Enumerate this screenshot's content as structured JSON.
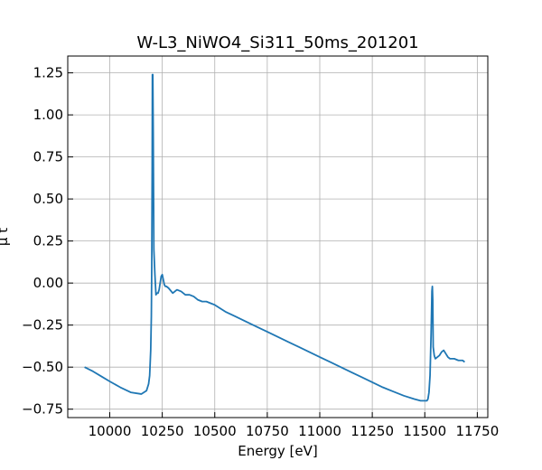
{
  "chart_data": {
    "type": "line",
    "title": "W-L3_NiWO4_Si311_50ms_201201",
    "xlabel": "Energy [eV]",
    "ylabel": "μ t",
    "xlim": [
      9800,
      11800
    ],
    "ylim": [
      -0.8,
      1.35
    ],
    "x_ticks": [
      10000,
      10250,
      10500,
      10750,
      11000,
      11250,
      11500,
      11750
    ],
    "x_tick_labels": [
      "10000",
      "10250",
      "10500",
      "10750",
      "11000",
      "11250",
      "11500",
      "11750"
    ],
    "y_ticks": [
      -0.75,
      -0.5,
      -0.25,
      0.0,
      0.25,
      0.5,
      0.75,
      1.0,
      1.25
    ],
    "y_tick_labels": [
      "−0.75",
      "−0.50",
      "−0.25",
      "0.00",
      "0.25",
      "0.50",
      "0.75",
      "1.00",
      "1.25"
    ],
    "grid": true,
    "series": [
      {
        "color": "#1f77b4",
        "x": [
          9880,
          9920,
          9960,
          10000,
          10050,
          10100,
          10150,
          10175,
          10185,
          10190,
          10195,
          10198,
          10200,
          10202,
          10203,
          10205,
          10207,
          10210,
          10215,
          10220,
          10225,
          10230,
          10235,
          10240,
          10245,
          10250,
          10255,
          10260,
          10265,
          10270,
          10280,
          10300,
          10320,
          10340,
          10360,
          10380,
          10400,
          10420,
          10440,
          10460,
          10480,
          10500,
          10550,
          10600,
          10650,
          10700,
          10750,
          10800,
          10850,
          10900,
          10950,
          11000,
          11050,
          11100,
          11150,
          11200,
          11250,
          11300,
          11350,
          11400,
          11450,
          11480,
          11500,
          11510,
          11515,
          11520,
          11525,
          11528,
          11530,
          11532,
          11534,
          11536,
          11538,
          11540,
          11545,
          11550,
          11560,
          11570,
          11580,
          11590,
          11600,
          11610,
          11620,
          11640,
          11660,
          11680,
          11690
        ],
        "y": [
          -0.5,
          -0.525,
          -0.555,
          -0.585,
          -0.62,
          -0.65,
          -0.66,
          -0.64,
          -0.6,
          -0.55,
          -0.4,
          -0.2,
          0.1,
          0.7,
          1.24,
          1.24,
          0.9,
          0.2,
          0.05,
          -0.07,
          -0.06,
          -0.06,
          -0.04,
          0.0,
          0.04,
          0.05,
          0.02,
          -0.01,
          -0.02,
          -0.02,
          -0.03,
          -0.06,
          -0.04,
          -0.05,
          -0.07,
          -0.07,
          -0.08,
          -0.1,
          -0.11,
          -0.11,
          -0.12,
          -0.13,
          -0.17,
          -0.2,
          -0.23,
          -0.26,
          -0.29,
          -0.32,
          -0.35,
          -0.38,
          -0.41,
          -0.44,
          -0.47,
          -0.5,
          -0.53,
          -0.56,
          -0.59,
          -0.62,
          -0.645,
          -0.67,
          -0.69,
          -0.7,
          -0.7,
          -0.7,
          -0.69,
          -0.65,
          -0.55,
          -0.4,
          -0.3,
          -0.18,
          -0.05,
          -0.02,
          -0.1,
          -0.38,
          -0.43,
          -0.45,
          -0.44,
          -0.43,
          -0.41,
          -0.4,
          -0.42,
          -0.44,
          -0.45,
          -0.45,
          -0.46,
          -0.46,
          -0.47
        ]
      }
    ]
  }
}
